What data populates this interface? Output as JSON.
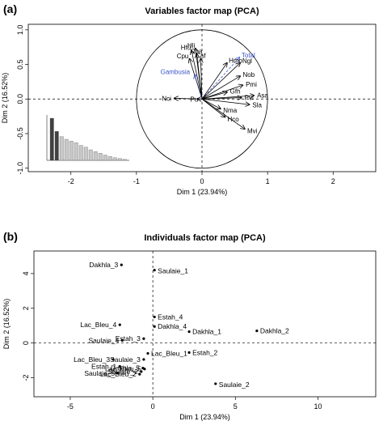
{
  "panel_a_label": "(a)",
  "panel_b_label": "(b)",
  "chart_data": [
    {
      "type": "scatter",
      "title": "Variables factor map (PCA)",
      "xlabel": "Dim 1 (23.94%)",
      "ylabel": "Dim 2 (16.52%)",
      "xlim": [
        -2.65,
        2.65
      ],
      "ylim": [
        -1.05,
        1.08
      ],
      "xticks": [
        "-2",
        "-1",
        "0",
        "1",
        "2"
      ],
      "yticks": [
        "-1.0",
        "-0.5",
        "0.0",
        "0.5",
        "1.0"
      ],
      "arrows": [
        {
          "name": "Hfu",
          "x": -0.16,
          "y": 0.7,
          "color": "#000000"
        },
        {
          "name": "Hli",
          "x": -0.1,
          "y": 0.73,
          "color": "#000000"
        },
        {
          "name": "Cpa",
          "x": -0.08,
          "y": 0.65,
          "color": "#000000"
        },
        {
          "name": "Cpu",
          "x": -0.19,
          "y": 0.58,
          "color": "#000000"
        },
        {
          "name": "Caf",
          "x": -0.02,
          "y": 0.58,
          "color": "#000000"
        },
        {
          "name": "Total",
          "x": 0.57,
          "y": 0.6,
          "color": "#3a55c9"
        },
        {
          "name": "Hmo",
          "x": 0.38,
          "y": 0.52,
          "color": "#000000"
        },
        {
          "name": "Ngl",
          "x": 0.58,
          "y": 0.52,
          "color": "#000000"
        },
        {
          "name": "Gambusia",
          "x": -0.11,
          "y": 0.35,
          "color": "#3a55c9"
        },
        {
          "name": "Nob",
          "x": 0.58,
          "y": 0.33,
          "color": "#000000"
        },
        {
          "name": "Pmi",
          "x": 0.62,
          "y": 0.2,
          "color": "#000000"
        },
        {
          "name": "Gfh",
          "x": 0.38,
          "y": 0.1,
          "color": "#000000"
        },
        {
          "name": "Asa",
          "x": 0.79,
          "y": 0.05,
          "color": "#000000"
        },
        {
          "name": "Pvi",
          "x": 0.6,
          "y": 0.02,
          "color": "#000000"
        },
        {
          "name": "Sla",
          "x": 0.72,
          "y": -0.08,
          "color": "#000000"
        },
        {
          "name": "Nci",
          "x": -0.42,
          "y": 0.01,
          "color": "#000000"
        },
        {
          "name": "Pu",
          "x": -0.07,
          "y": 0.0,
          "color": "#000000"
        },
        {
          "name": "Nma",
          "x": 0.28,
          "y": -0.14,
          "color": "#000000"
        },
        {
          "name": "Hco",
          "x": 0.35,
          "y": -0.26,
          "color": "#000000"
        },
        {
          "name": "Mvi",
          "x": 0.65,
          "y": -0.43,
          "color": "#000000"
        }
      ],
      "scree_inset": {
        "type": "bar",
        "values": [
          2.4,
          1.65,
          1.35,
          1.2,
          1.1,
          1.0,
          0.85,
          0.75,
          0.6,
          0.5,
          0.4,
          0.3,
          0.22,
          0.15,
          0.1,
          0.06
        ],
        "first_bars_color": "#404040",
        "other_bars_color": "#c8c8c8"
      }
    },
    {
      "type": "scatter",
      "title": "Individuals factor map (PCA)",
      "xlabel": "Dim 1 (23.94%)",
      "ylabel": "Dim 2 (16.52%)",
      "xlim": [
        -7.2,
        13.5
      ],
      "ylim": [
        -3.1,
        5.3
      ],
      "xticks": [
        "-5",
        "0",
        "5",
        "10"
      ],
      "yticks": [
        "-2",
        "0",
        "2",
        "4"
      ],
      "points": [
        {
          "label": "Dakhla_3",
          "x": -1.9,
          "y": 4.5
        },
        {
          "label": "Saulaie_1",
          "x": 0.1,
          "y": 4.2
        },
        {
          "label": "Estah_4",
          "x": 0.1,
          "y": 1.5
        },
        {
          "label": "Lac_Bleu_4",
          "x": -2.0,
          "y": 1.05
        },
        {
          "label": "Dakhla_4",
          "x": 0.1,
          "y": 0.95
        },
        {
          "label": "Dakhla_1",
          "x": 2.2,
          "y": 0.65
        },
        {
          "label": "Dakhla_2",
          "x": 6.3,
          "y": 0.7
        },
        {
          "label": "Saulaie_4",
          "x": -1.85,
          "y": 0.15
        },
        {
          "label": "Estah_3",
          "x": -0.55,
          "y": 0.25
        },
        {
          "label": "Lac_Bleu_1",
          "x": -0.3,
          "y": -0.6
        },
        {
          "label": "Saulaie_3",
          "x": -0.55,
          "y": -0.95
        },
        {
          "label": "Lac_Bleu_3",
          "x": -2.4,
          "y": -0.95
        },
        {
          "label": "Estah_1",
          "x": -2.0,
          "y": -1.35
        },
        {
          "label": "Dakhla_5",
          "x": -0.6,
          "y": -1.45
        },
        {
          "label": "Lac_Bleu_5",
          "x": -0.5,
          "y": -1.5
        },
        {
          "label": "Saulaie_2",
          "x": -0.7,
          "y": -1.65
        },
        {
          "label": "Lac_Bleu_2",
          "x": -0.8,
          "y": -1.8
        },
        {
          "label": "Saulaie_5",
          "x": -2.1,
          "y": -1.75
        },
        {
          "label": "Estah_2",
          "x": 2.2,
          "y": -0.55
        },
        {
          "label": "Saulaie_2",
          "x": 3.8,
          "y": -2.35
        }
      ]
    }
  ]
}
